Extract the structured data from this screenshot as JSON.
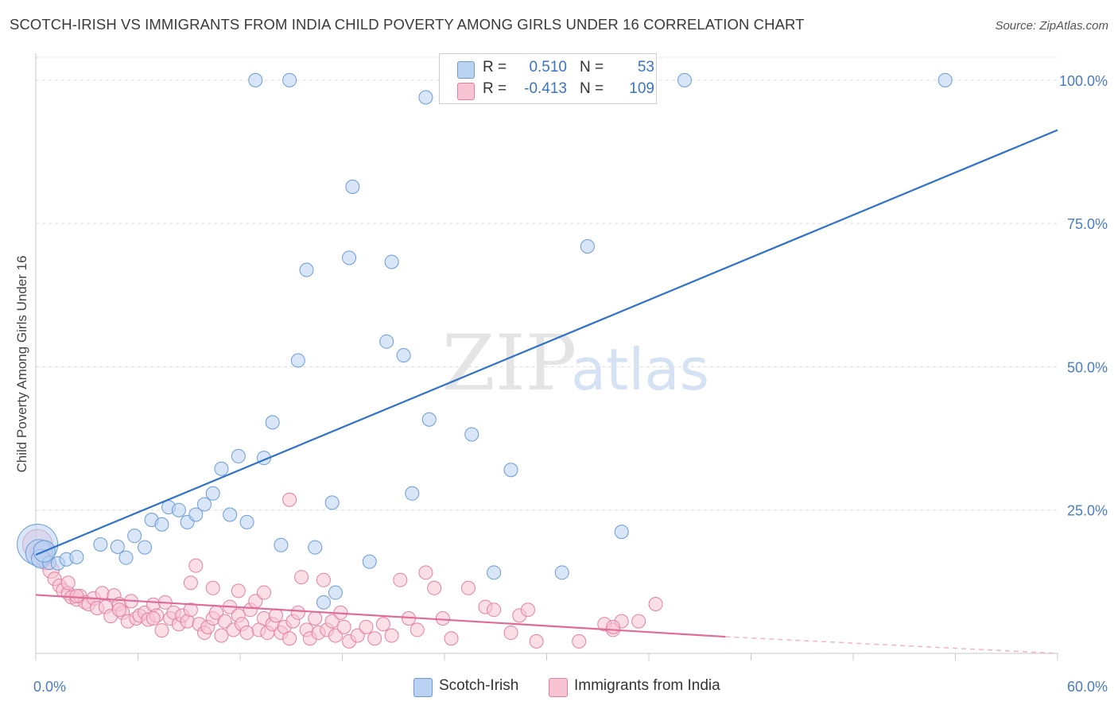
{
  "title": "SCOTCH-IRISH VS IMMIGRANTS FROM INDIA CHILD POVERTY AMONG GIRLS UNDER 16 CORRELATION CHART",
  "source": "Source: ZipAtlas.com",
  "watermark": {
    "zip": "ZIP",
    "atlas": "atlas"
  },
  "legend": {
    "r_label": "R =",
    "n_label": "N =",
    "rows": [
      {
        "r": "0.510",
        "n": "53",
        "color": "#6a9bd8",
        "fill": "#b9d2f2"
      },
      {
        "r": "-0.413",
        "n": "109",
        "color": "#e57fa0",
        "fill": "#f8c4d3"
      }
    ]
  },
  "bottom_legend": [
    "Scotch-Irish",
    "Immigrants from India"
  ],
  "colors": {
    "blue_line": "#2f72c8",
    "pink_line": "#e06b98",
    "blue_point": "#6a9bd8",
    "pink_point": "#e57fa0",
    "tick_label": "#4a7cc4",
    "grid": "#dcdcdc"
  },
  "chart_data": {
    "type": "scatter",
    "xlabel": "",
    "ylabel": "Child Poverty Among Girls Under 16",
    "xlim": [
      0,
      60
    ],
    "ylim": [
      0,
      104
    ],
    "x_tick_labels": [
      {
        "value": 0,
        "label": "0.0%"
      },
      {
        "value": 60,
        "label": "60.0%"
      }
    ],
    "y_tick_labels": [
      {
        "value": 25,
        "label": "25.0%"
      },
      {
        "value": 50,
        "label": "50.0%"
      },
      {
        "value": 75,
        "label": "75.0%"
      },
      {
        "value": 100,
        "label": "100.0%"
      }
    ],
    "grid": true,
    "legend_position": "top-center",
    "series": [
      {
        "name": "Scotch-Irish",
        "r": 0.51,
        "n": 53,
        "trend": {
          "x": [
            0,
            60
          ],
          "y": [
            17.2,
            91.3
          ]
        },
        "points": [
          [
            0.1,
            19.0,
            3
          ],
          [
            0.2,
            17.5,
            2
          ],
          [
            0.3,
            16.5,
            1.4
          ],
          [
            0.8,
            15.8,
            1
          ],
          [
            1.3,
            15.7,
            1
          ],
          [
            1.8,
            16.4,
            1
          ],
          [
            2.4,
            16.8,
            1
          ],
          [
            3.8,
            19.0,
            1
          ],
          [
            4.8,
            18.6,
            1
          ],
          [
            5.3,
            16.7,
            1
          ],
          [
            5.8,
            20.5,
            1
          ],
          [
            6.4,
            18.5,
            1
          ],
          [
            6.8,
            23.3,
            1
          ],
          [
            7.4,
            22.5,
            1
          ],
          [
            7.8,
            25.5,
            1
          ],
          [
            8.4,
            25.0,
            1
          ],
          [
            8.9,
            22.9,
            1
          ],
          [
            9.4,
            24.2,
            1
          ],
          [
            9.9,
            26.0,
            1
          ],
          [
            10.4,
            27.9,
            1
          ],
          [
            10.9,
            32.2,
            1
          ],
          [
            11.4,
            24.2,
            1
          ],
          [
            11.9,
            34.4,
            1
          ],
          [
            12.4,
            22.9,
            1
          ],
          [
            13.4,
            34.1,
            1
          ],
          [
            13.9,
            40.3,
            1
          ],
          [
            14.4,
            18.9,
            1
          ],
          [
            15.4,
            51.1,
            1
          ],
          [
            15.9,
            66.9,
            1
          ],
          [
            16.4,
            18.5,
            1
          ],
          [
            16.9,
            8.9,
            1
          ],
          [
            17.4,
            26.3,
            1
          ],
          [
            17.6,
            10.6,
            1
          ],
          [
            18.4,
            69.0,
            1
          ],
          [
            18.6,
            81.4,
            1
          ],
          [
            19.6,
            16.0,
            1
          ],
          [
            20.6,
            54.4,
            1
          ],
          [
            20.9,
            68.3,
            1
          ],
          [
            21.6,
            52.0,
            1
          ],
          [
            22.1,
            27.9,
            1
          ],
          [
            23.1,
            40.8,
            1
          ],
          [
            25.6,
            38.2,
            1
          ],
          [
            26.9,
            14.1,
            1
          ],
          [
            27.9,
            32.0,
            1
          ],
          [
            30.9,
            14.1,
            1
          ],
          [
            34.4,
            21.2,
            1
          ],
          [
            12.9,
            100,
            1
          ],
          [
            14.9,
            100,
            1
          ],
          [
            22.9,
            97,
            1
          ],
          [
            38.1,
            100,
            1
          ],
          [
            53.4,
            100,
            1
          ],
          [
            32.4,
            71.0,
            1
          ],
          [
            0.5,
            17.8,
            1.6
          ]
        ]
      },
      {
        "name": "Immigrants from India",
        "r": -0.413,
        "n": 109,
        "trend": {
          "x": [
            0,
            40.5
          ],
          "y": [
            10.2,
            2.9
          ]
        },
        "trend_dashed": {
          "x": [
            40.5,
            60
          ],
          "y": [
            2.9,
            -0.6
          ]
        },
        "points": [
          [
            0.1,
            19.0,
            2.2
          ],
          [
            0.3,
            17.5,
            1.6
          ],
          [
            0.6,
            16.0,
            1.2
          ],
          [
            0.9,
            14.5,
            1.2
          ],
          [
            1.1,
            13.0,
            1
          ],
          [
            1.4,
            11.8,
            1
          ],
          [
            1.6,
            11.0,
            1
          ],
          [
            1.9,
            10.5,
            1
          ],
          [
            2.1,
            9.8,
            1
          ],
          [
            2.4,
            9.4,
            1
          ],
          [
            2.6,
            10.0,
            1
          ],
          [
            2.9,
            8.9,
            1
          ],
          [
            3.1,
            8.6,
            1
          ],
          [
            3.4,
            9.6,
            1
          ],
          [
            3.6,
            7.9,
            1
          ],
          [
            3.9,
            10.5,
            1
          ],
          [
            4.1,
            8.1,
            1
          ],
          [
            4.4,
            6.5,
            1
          ],
          [
            4.6,
            10.1,
            1
          ],
          [
            4.9,
            8.6,
            1
          ],
          [
            5.1,
            7.1,
            1
          ],
          [
            5.4,
            5.6,
            1
          ],
          [
            5.6,
            9.1,
            1
          ],
          [
            5.9,
            6.1,
            1
          ],
          [
            6.1,
            6.6,
            1
          ],
          [
            6.4,
            7.1,
            1
          ],
          [
            6.6,
            5.9,
            1
          ],
          [
            6.9,
            8.5,
            1
          ],
          [
            7.1,
            6.6,
            1
          ],
          [
            7.4,
            4.0,
            1
          ],
          [
            7.6,
            8.9,
            1
          ],
          [
            7.9,
            6.1,
            1
          ],
          [
            8.1,
            7.1,
            1
          ],
          [
            8.4,
            5.1,
            1
          ],
          [
            8.6,
            6.6,
            1
          ],
          [
            8.9,
            5.6,
            1
          ],
          [
            9.1,
            7.6,
            1
          ],
          [
            9.4,
            15.3,
            1
          ],
          [
            9.6,
            5.1,
            1
          ],
          [
            9.9,
            3.6,
            1
          ],
          [
            10.1,
            4.6,
            1
          ],
          [
            10.4,
            6.1,
            1
          ],
          [
            10.6,
            7.1,
            1
          ],
          [
            10.9,
            3.1,
            1
          ],
          [
            11.1,
            5.6,
            1
          ],
          [
            11.4,
            8.1,
            1
          ],
          [
            11.6,
            4.1,
            1
          ],
          [
            11.9,
            6.6,
            1
          ],
          [
            12.1,
            5.1,
            1
          ],
          [
            12.4,
            3.6,
            1
          ],
          [
            12.6,
            7.6,
            1
          ],
          [
            12.9,
            9.1,
            1
          ],
          [
            13.1,
            4.1,
            1
          ],
          [
            13.4,
            6.1,
            1
          ],
          [
            13.6,
            3.6,
            1
          ],
          [
            13.9,
            5.1,
            1
          ],
          [
            14.1,
            6.6,
            1
          ],
          [
            14.4,
            3.6,
            1
          ],
          [
            14.6,
            4.6,
            1
          ],
          [
            14.9,
            2.6,
            1
          ],
          [
            15.1,
            5.6,
            1
          ],
          [
            15.4,
            7.1,
            1
          ],
          [
            15.6,
            13.3,
            1
          ],
          [
            15.9,
            4.1,
            1
          ],
          [
            16.1,
            2.6,
            1
          ],
          [
            16.4,
            6.1,
            1
          ],
          [
            16.6,
            3.6,
            1
          ],
          [
            16.9,
            12.8,
            1
          ],
          [
            17.1,
            4.1,
            1
          ],
          [
            17.4,
            5.6,
            1
          ],
          [
            17.6,
            3.1,
            1
          ],
          [
            17.9,
            7.1,
            1
          ],
          [
            18.1,
            4.6,
            1
          ],
          [
            18.4,
            2.1,
            1
          ],
          [
            18.9,
            3.1,
            1
          ],
          [
            19.4,
            4.6,
            1
          ],
          [
            19.9,
            2.6,
            1
          ],
          [
            20.4,
            5.1,
            1
          ],
          [
            20.9,
            3.1,
            1
          ],
          [
            21.4,
            12.8,
            1
          ],
          [
            21.9,
            6.1,
            1
          ],
          [
            22.4,
            4.1,
            1
          ],
          [
            22.9,
            14.1,
            1
          ],
          [
            23.4,
            11.4,
            1
          ],
          [
            23.9,
            6.1,
            1
          ],
          [
            24.4,
            2.6,
            1
          ],
          [
            25.4,
            11.4,
            1
          ],
          [
            26.4,
            8.1,
            1
          ],
          [
            26.9,
            7.6,
            1
          ],
          [
            27.9,
            3.6,
            1
          ],
          [
            28.4,
            6.6,
            1
          ],
          [
            28.9,
            7.6,
            1
          ],
          [
            29.4,
            2.1,
            1
          ],
          [
            31.9,
            2.1,
            1
          ],
          [
            33.4,
            5.1,
            1
          ],
          [
            33.9,
            4.1,
            1
          ],
          [
            34.4,
            5.6,
            1
          ],
          [
            35.4,
            5.6,
            1
          ],
          [
            36.4,
            8.6,
            1
          ],
          [
            14.9,
            26.8,
            1
          ],
          [
            9.1,
            12.3,
            1
          ],
          [
            10.4,
            11.4,
            1
          ],
          [
            11.9,
            10.9,
            1
          ],
          [
            13.4,
            10.6,
            1
          ],
          [
            1.9,
            12.3,
            1
          ],
          [
            2.4,
            10.0,
            1
          ],
          [
            4.9,
            7.6,
            1
          ],
          [
            6.9,
            6.1,
            1
          ],
          [
            33.9,
            4.6,
            1
          ]
        ]
      }
    ]
  }
}
